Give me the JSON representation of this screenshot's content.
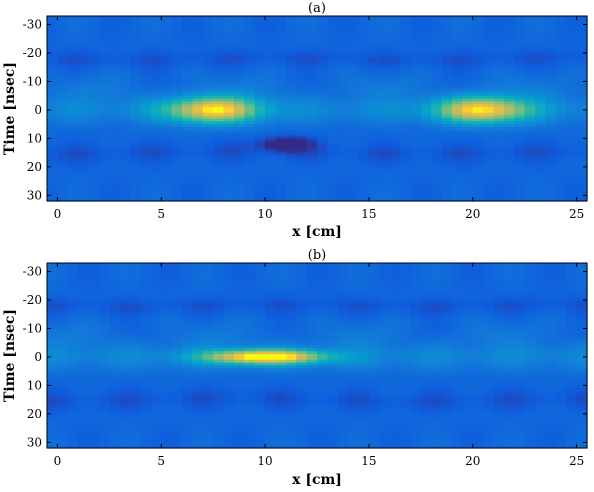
{
  "chart_data": [
    {
      "type": "heatmap",
      "title": "(a)",
      "xlabel": "x [cm]",
      "ylabel": "Time [nsec]",
      "xlim": [
        -0.5,
        25.5
      ],
      "ylim": [
        -33,
        32
      ],
      "y_reversed": true,
      "xticks": [
        0,
        5,
        10,
        15,
        20,
        25
      ],
      "yticks": [
        -30,
        -20,
        -10,
        0,
        10,
        20,
        30
      ],
      "colormap": "parula",
      "value_range": [
        0,
        1
      ],
      "features": [
        {
          "x": 7.5,
          "t": 0,
          "sx": 2.2,
          "st": 4.5,
          "amp": 0.72
        },
        {
          "x": 20.5,
          "t": 0,
          "sx": 2.2,
          "st": 4.5,
          "amp": 0.72
        },
        {
          "x": 11,
          "t": 12,
          "sx": 1.2,
          "st": 2.5,
          "amp": -0.25
        }
      ]
    },
    {
      "type": "heatmap",
      "title": "(b)",
      "xlabel": "x [cm]",
      "ylabel": "Time [nsec]",
      "xlim": [
        -0.5,
        25.5
      ],
      "ylim": [
        -33,
        32
      ],
      "y_reversed": true,
      "xticks": [
        0,
        5,
        10,
        15,
        20,
        25
      ],
      "yticks": [
        -30,
        -20,
        -10,
        0,
        10,
        20,
        30
      ],
      "colormap": "parula",
      "value_range": [
        0,
        1
      ],
      "features": [
        {
          "x": 10,
          "t": 0,
          "sx": 2.8,
          "st": 2.5,
          "amp": 0.85
        }
      ]
    }
  ]
}
